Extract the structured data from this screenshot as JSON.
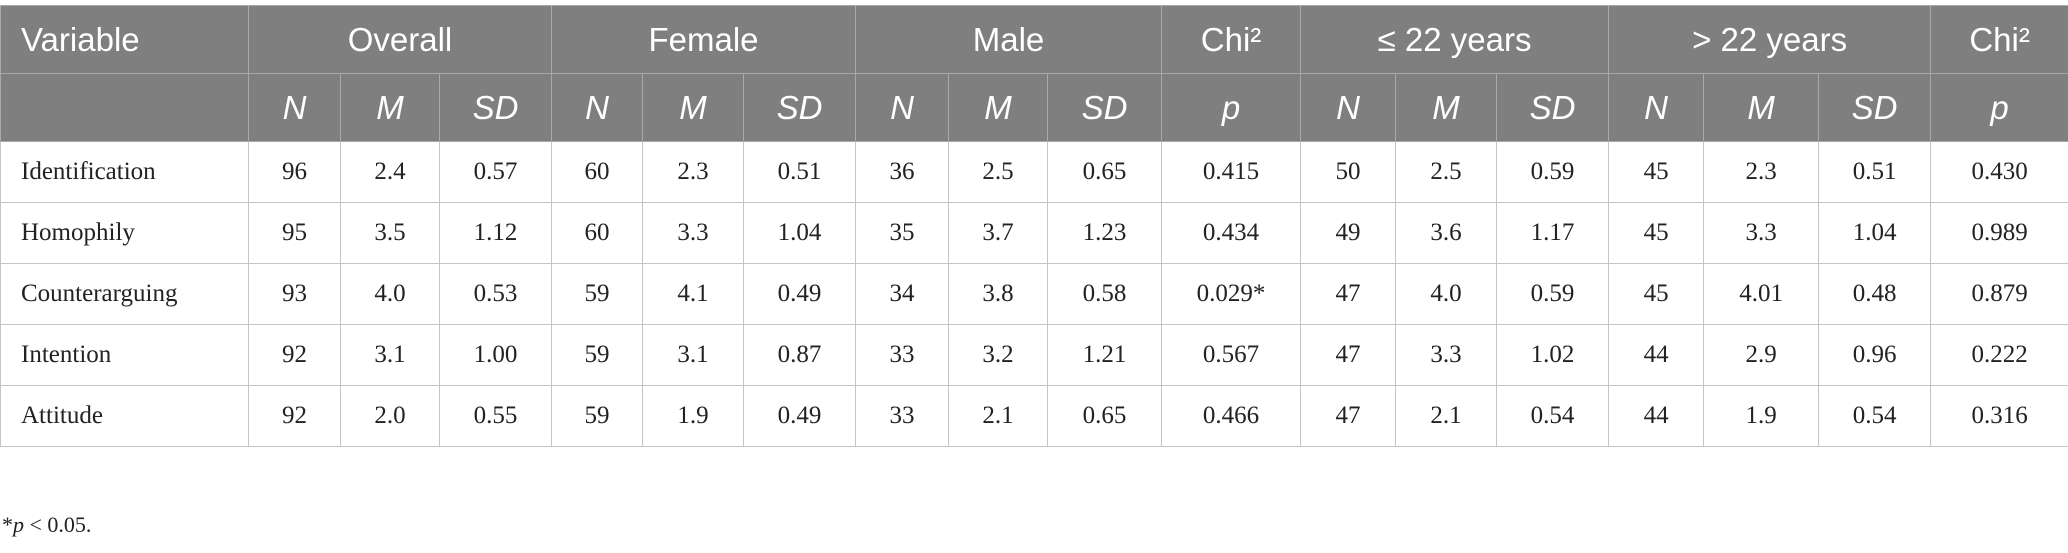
{
  "table": {
    "variable_header": "Variable",
    "groups": [
      {
        "label": "Overall",
        "columns": [
          "N",
          "M",
          "SD"
        ]
      },
      {
        "label": "Female",
        "columns": [
          "N",
          "M",
          "SD"
        ]
      },
      {
        "label": "Male",
        "columns": [
          "N",
          "M",
          "SD"
        ]
      },
      {
        "label": "Chi²",
        "columns": [
          "p"
        ]
      },
      {
        "label": "≤ 22 years",
        "columns": [
          "N",
          "M",
          "SD"
        ]
      },
      {
        "label": "> 22 years",
        "columns": [
          "N",
          "M",
          "SD"
        ]
      },
      {
        "label": "Chi²",
        "columns": [
          "p"
        ]
      }
    ],
    "rows": [
      {
        "variable": "Identification",
        "values": [
          "96",
          "2.4",
          "0.57",
          "60",
          "2.3",
          "0.51",
          "36",
          "2.5",
          "0.65",
          "0.415",
          "50",
          "2.5",
          "0.59",
          "45",
          "2.3",
          "0.51",
          "0.430"
        ]
      },
      {
        "variable": "Homophily",
        "values": [
          "95",
          "3.5",
          "1.12",
          "60",
          "3.3",
          "1.04",
          "35",
          "3.7",
          "1.23",
          "0.434",
          "49",
          "3.6",
          "1.17",
          "45",
          "3.3",
          "1.04",
          "0.989"
        ]
      },
      {
        "variable": "Counterarguing",
        "values": [
          "93",
          "4.0",
          "0.53",
          "59",
          "4.1",
          "0.49",
          "34",
          "3.8",
          "0.58",
          "0.029*",
          "47",
          "4.0",
          "0.59",
          "45",
          "4.01",
          "0.48",
          "0.879"
        ]
      },
      {
        "variable": "Intention",
        "values": [
          "92",
          "3.1",
          "1.00",
          "59",
          "3.1",
          "0.87",
          "33",
          "3.2",
          "1.21",
          "0.567",
          "47",
          "3.3",
          "1.02",
          "44",
          "2.9",
          "0.96",
          "0.222"
        ]
      },
      {
        "variable": "Attitude",
        "values": [
          "92",
          "2.0",
          "0.55",
          "59",
          "1.9",
          "0.49",
          "33",
          "2.1",
          "0.65",
          "0.466",
          "47",
          "2.1",
          "0.54",
          "44",
          "1.9",
          "0.54",
          "0.316"
        ]
      }
    ]
  },
  "footnote": {
    "marker": "*",
    "symbol": "p",
    "text": " < 0.05."
  }
}
